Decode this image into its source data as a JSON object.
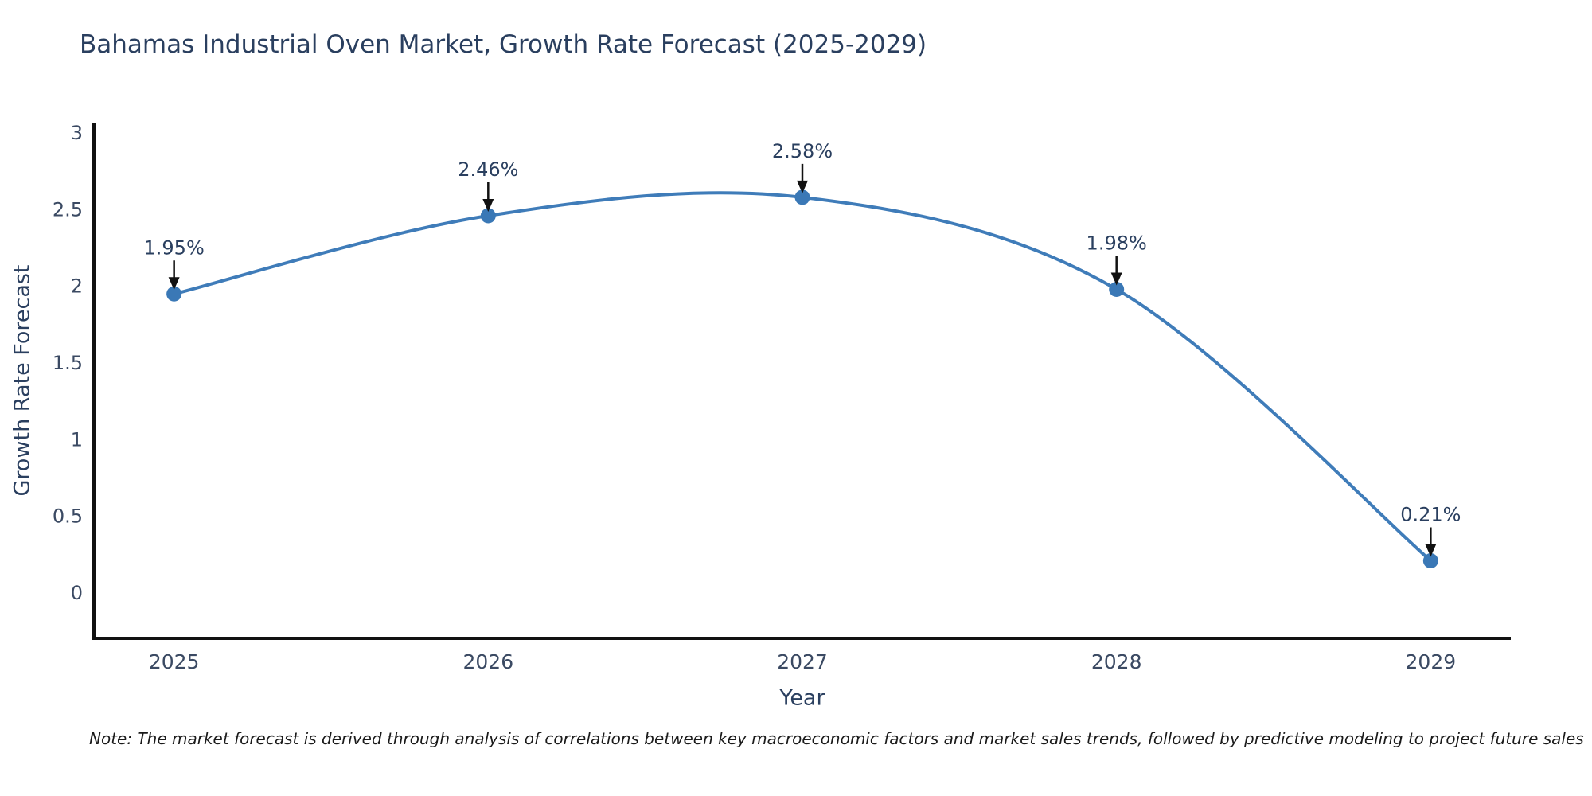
{
  "note": "Note: The market forecast is derived through analysis of correlations between key macroeconomic factors and market sales trends, followed by predictive modeling to project future sales",
  "chart_data": {
    "type": "line",
    "title": "Bahamas Industrial Oven Market, Growth Rate Forecast (2025-2029)",
    "xlabel": "Year",
    "ylabel": "Growth Rate Forecast",
    "x": [
      2025,
      2026,
      2027,
      2028,
      2029
    ],
    "series": [
      {
        "name": "Growth Rate Forecast",
        "values": [
          1.95,
          2.46,
          2.58,
          1.98,
          0.21
        ]
      }
    ],
    "point_labels": [
      "1.95%",
      "2.46%",
      "2.58%",
      "1.98%",
      "0.21%"
    ],
    "line_shape": "spline",
    "xticks": [
      "2025",
      "2026",
      "2027",
      "2028",
      "2029"
    ],
    "yticks": [
      "0",
      "0.5",
      "1",
      "1.5",
      "2",
      "2.5",
      "3"
    ],
    "ytick_values": [
      0,
      0.5,
      1,
      1.5,
      2,
      2.5,
      3
    ],
    "xlim": [
      2024.745,
      2029.255
    ],
    "ylim": [
      -0.296,
      3.062
    ],
    "grid": false,
    "legend": false,
    "colors": {
      "line": "#3f7cb9",
      "marker": "#3a78b6",
      "axis": "#111111",
      "annotation_arrow": "#111111",
      "annotation_text": "#2a3f5f",
      "tick_text": "#3b4a63",
      "title_text": "#2a3f5f",
      "note_text": "#1a1a1a"
    }
  }
}
